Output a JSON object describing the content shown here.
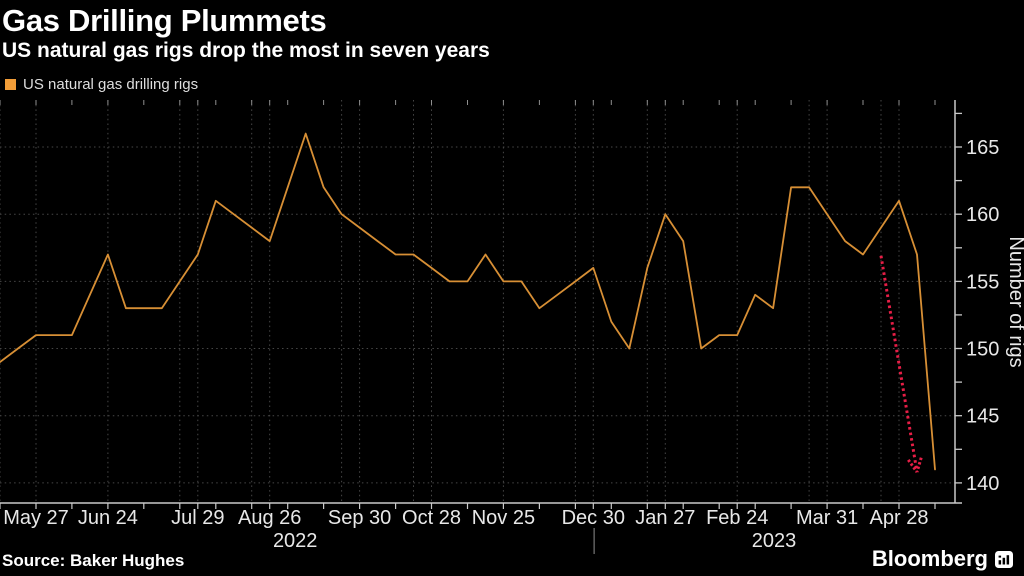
{
  "header": {
    "title": "Gas Drilling Plummets",
    "subtitle": "US natural gas rigs drop the most in seven years"
  },
  "legend": {
    "label": "US natural gas drilling rigs",
    "swatch_color": "#f29d38"
  },
  "footer": {
    "source": "Source: Baker Hughes",
    "brand": "Bloomberg"
  },
  "colors": {
    "background": "#000000",
    "line": "#d78f35",
    "grid": "#474747",
    "axis": "#c9c9c9",
    "tick_text": "#e8e8e8",
    "top_tick": "#8f8f8f",
    "year_separator": "#8f8f8f",
    "annotation_arrow": "#e61e46",
    "text": "#ffffff"
  },
  "chart_data": {
    "type": "line",
    "title": "Gas Drilling Plummets",
    "subtitle": "US natural gas rigs drop the most in seven years",
    "series_name": "US natural gas drilling rigs",
    "xlabel": "",
    "ylabel": "Number of rigs",
    "legend_position": "top-left",
    "grid": true,
    "yticks": [
      140,
      145,
      150,
      155,
      160,
      165
    ],
    "y_minor_tick_step": 2.5,
    "ylim": [
      138.5,
      168.5
    ],
    "x_unit": "week",
    "dates": [
      "May 13",
      "May 20",
      "May 27",
      "Jun 3",
      "Jun 10",
      "Jun 17",
      "Jun 24",
      "Jul 1",
      "Jul 8",
      "Jul 15",
      "Jul 22",
      "Jul 29",
      "Aug 5",
      "Aug 12",
      "Aug 19",
      "Aug 26",
      "Sep 2",
      "Sep 9",
      "Sep 16",
      "Sep 23",
      "Sep 30",
      "Oct 7",
      "Oct 14",
      "Oct 21",
      "Oct 28",
      "Nov 4",
      "Nov 11",
      "Nov 18",
      "Nov 25",
      "Dec 2",
      "Dec 9",
      "Dec 16",
      "Dec 23",
      "Dec 30",
      "Jan 6",
      "Jan 13",
      "Jan 20",
      "Jan 27",
      "Feb 3",
      "Feb 10",
      "Feb 17",
      "Feb 24",
      "Mar 3",
      "Mar 10",
      "Mar 17",
      "Mar 24",
      "Mar 31",
      "Apr 7",
      "Apr 14",
      "Apr 21",
      "Apr 28",
      "May 5",
      "May 12"
    ],
    "values": [
      149,
      150,
      151,
      151,
      151,
      154,
      157,
      153,
      153,
      153,
      155,
      157,
      161,
      160,
      159,
      158,
      162,
      166,
      162,
      160,
      159,
      158,
      157,
      157,
      156,
      155,
      155,
      157,
      155,
      155,
      153,
      154,
      155,
      156,
      152,
      150,
      156,
      160,
      158,
      150,
      151,
      151,
      154,
      153,
      162,
      162,
      160,
      158,
      157,
      159,
      161,
      157,
      141
    ],
    "x_tick_labels": [
      {
        "label": "May 27",
        "week": 2
      },
      {
        "label": "Jun 24",
        "week": 6
      },
      {
        "label": "Jul 29",
        "week": 11
      },
      {
        "label": "Aug 26",
        "week": 15
      },
      {
        "label": "Sep 30",
        "week": 20
      },
      {
        "label": "Oct 28",
        "week": 24
      },
      {
        "label": "Nov 25",
        "week": 28
      },
      {
        "label": "Dec 30",
        "week": 33
      },
      {
        "label": "Jan 27",
        "week": 37
      },
      {
        "label": "Feb 24",
        "week": 41
      },
      {
        "label": "Mar 31",
        "week": 46
      },
      {
        "label": "Apr 28",
        "week": 50
      }
    ],
    "year_labels": [
      {
        "label": "2022",
        "week": 16.42
      },
      {
        "label": "2023",
        "week": 43.05
      }
    ],
    "year_separator_week": 33.04,
    "gridline_weeks": [
      0,
      2,
      6,
      10,
      11,
      14,
      15,
      19,
      20,
      23,
      24,
      28,
      32,
      33,
      36,
      37,
      41,
      45,
      46,
      49,
      50
    ],
    "minor_tick_weeks": [
      0,
      2,
      4,
      6,
      8,
      10,
      11,
      12,
      14,
      15,
      16,
      18,
      20,
      22,
      24,
      26,
      28,
      30,
      32,
      33,
      34,
      36,
      37,
      38,
      40,
      41,
      42,
      44,
      46,
      48,
      50,
      52
    ],
    "annotation": {
      "shape": "arrow",
      "style": "dotted",
      "color": "#e61e46",
      "from": {
        "week": 49,
        "value": 156.9
      },
      "to": {
        "week": 51,
        "value": 140.8
      }
    }
  }
}
